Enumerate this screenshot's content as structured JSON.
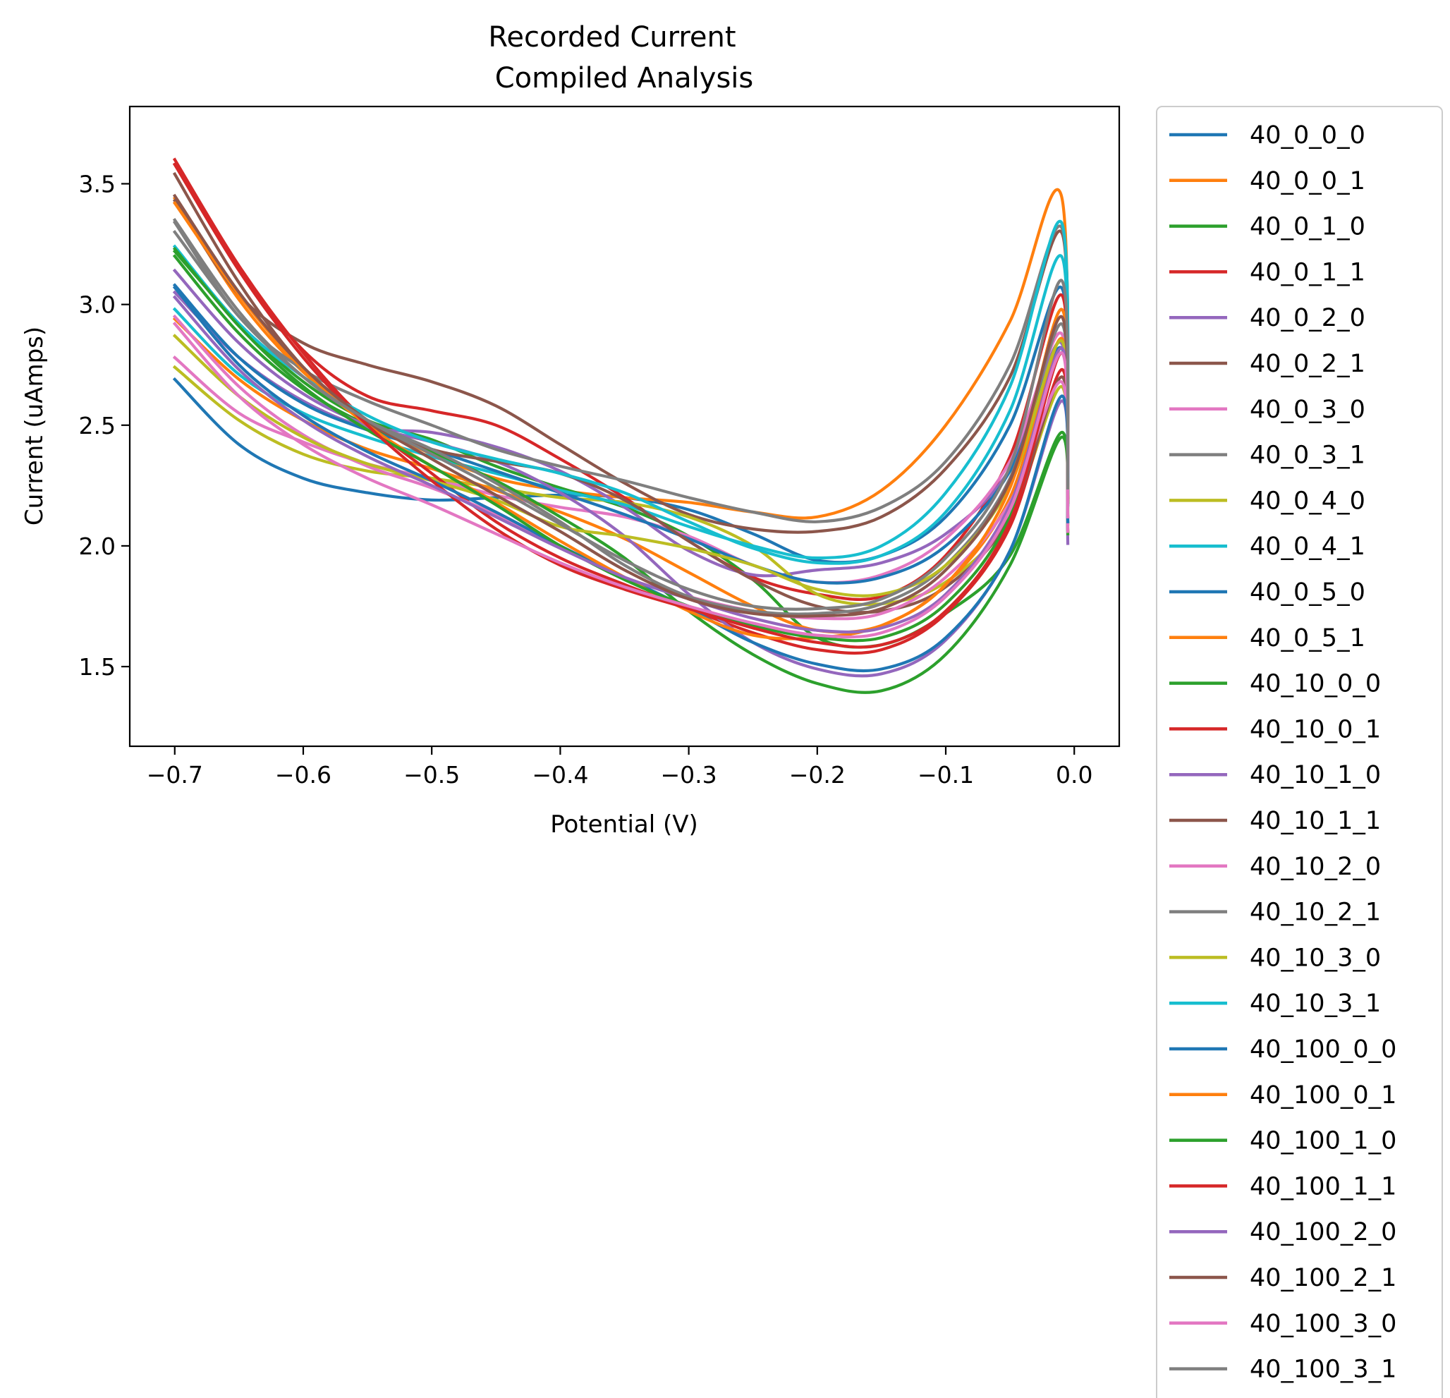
{
  "chart_data": {
    "type": "line",
    "title": "Recorded Current",
    "subtitle": "Compiled Analysis",
    "xlabel": "Potential (V)",
    "ylabel": "Current (uAmps)",
    "xlim": [
      -0.735,
      0.035
    ],
    "ylim": [
      1.17,
      3.82
    ],
    "xticks": [
      "−0.7",
      "−0.6",
      "−0.5",
      "−0.4",
      "−0.3",
      "−0.2",
      "−0.1",
      "0.0"
    ],
    "yticks": [
      "1.5",
      "2.0",
      "2.5",
      "3.0",
      "3.5"
    ],
    "grid": false,
    "legend_position": "outside-right",
    "x_samples": [
      -0.7,
      -0.65,
      -0.6,
      -0.55,
      -0.5,
      -0.45,
      -0.4,
      -0.35,
      -0.3,
      -0.25,
      -0.2,
      -0.15,
      -0.1,
      -0.05,
      -0.01,
      -0.005
    ],
    "series": [
      {
        "name": "40_0_0_0",
        "color": "#1f77b4",
        "values": [
          2.69,
          2.42,
          2.28,
          2.22,
          2.19,
          2.2,
          2.21,
          2.2,
          2.15,
          2.05,
          1.94,
          1.96,
          2.12,
          2.5,
          3.07,
          2.27
        ]
      },
      {
        "name": "40_0_0_1",
        "color": "#ff7f0e",
        "values": [
          3.44,
          3.02,
          2.72,
          2.52,
          2.38,
          2.28,
          2.23,
          2.2,
          2.18,
          2.14,
          2.12,
          2.23,
          2.5,
          2.93,
          3.45,
          2.06
        ]
      },
      {
        "name": "40_0_1_0",
        "color": "#2ca02c",
        "values": [
          3.22,
          2.92,
          2.68,
          2.52,
          2.44,
          2.33,
          2.24,
          2.16,
          2.04,
          1.86,
          1.62,
          1.59,
          1.72,
          1.96,
          2.47,
          2.06
        ]
      },
      {
        "name": "40_0_1_1",
        "color": "#d62728",
        "values": [
          3.58,
          3.15,
          2.81,
          2.62,
          2.56,
          2.5,
          2.36,
          2.2,
          2.02,
          1.87,
          1.8,
          1.79,
          1.96,
          2.37,
          3.04,
          2.26
        ]
      },
      {
        "name": "40_0_2_0",
        "color": "#9467bd",
        "values": [
          3.05,
          2.78,
          2.6,
          2.49,
          2.47,
          2.41,
          2.31,
          2.16,
          1.98,
          1.88,
          1.9,
          1.93,
          2.05,
          2.32,
          2.84,
          2.01
        ]
      },
      {
        "name": "40_0_2_1",
        "color": "#8c564b",
        "values": [
          3.43,
          3.04,
          2.84,
          2.75,
          2.68,
          2.58,
          2.42,
          2.26,
          2.13,
          2.07,
          2.06,
          2.12,
          2.32,
          2.7,
          3.3,
          2.36
        ]
      },
      {
        "name": "40_0_3_0",
        "color": "#e377c2",
        "values": [
          2.78,
          2.55,
          2.43,
          2.34,
          2.28,
          2.21,
          2.16,
          2.12,
          2.04,
          1.92,
          1.85,
          1.88,
          2.03,
          2.35,
          2.88,
          2.12
        ]
      },
      {
        "name": "40_0_3_1",
        "color": "#7f7f7f",
        "values": [
          3.34,
          2.95,
          2.73,
          2.6,
          2.5,
          2.4,
          2.33,
          2.27,
          2.2,
          2.14,
          2.1,
          2.16,
          2.35,
          2.75,
          3.32,
          2.4
        ]
      },
      {
        "name": "40_0_4_0",
        "color": "#bcbd22",
        "values": [
          2.74,
          2.52,
          2.38,
          2.31,
          2.28,
          2.24,
          2.2,
          2.18,
          2.12,
          2.0,
          1.8,
          1.76,
          1.85,
          2.12,
          2.66,
          2.09
        ]
      },
      {
        "name": "40_0_4_1",
        "color": "#17becf",
        "values": [
          2.98,
          2.71,
          2.55,
          2.45,
          2.37,
          2.3,
          2.23,
          2.17,
          2.08,
          2.0,
          1.95,
          2.0,
          2.22,
          2.66,
          3.34,
          2.3
        ]
      },
      {
        "name": "40_0_5_0",
        "color": "#1f77b4",
        "values": [
          3.08,
          2.78,
          2.59,
          2.48,
          2.4,
          2.31,
          2.22,
          2.13,
          2.03,
          1.92,
          1.85,
          1.87,
          2.0,
          2.31,
          2.82,
          2.1
        ]
      },
      {
        "name": "40_0_5_1",
        "color": "#ff7f0e",
        "values": [
          2.94,
          2.69,
          2.52,
          2.4,
          2.32,
          2.23,
          2.14,
          2.03,
          1.89,
          1.75,
          1.65,
          1.67,
          1.84,
          2.2,
          2.86,
          2.18
        ]
      },
      {
        "name": "40_10_0_0",
        "color": "#2ca02c",
        "values": [
          3.2,
          2.88,
          2.65,
          2.5,
          2.39,
          2.27,
          2.12,
          1.95,
          1.73,
          1.55,
          1.43,
          1.4,
          1.55,
          1.92,
          2.45,
          2.05
        ]
      },
      {
        "name": "40_10_0_1",
        "color": "#d62728",
        "values": [
          3.6,
          3.16,
          2.8,
          2.51,
          2.3,
          2.1,
          1.95,
          1.84,
          1.74,
          1.64,
          1.57,
          1.57,
          1.72,
          2.08,
          2.73,
          2.19
        ]
      },
      {
        "name": "40_10_1_0",
        "color": "#9467bd",
        "values": [
          3.14,
          2.84,
          2.63,
          2.5,
          2.43,
          2.35,
          2.22,
          2.04,
          1.8,
          1.6,
          1.49,
          1.47,
          1.61,
          1.98,
          2.6,
          2.12
        ]
      },
      {
        "name": "40_10_1_1",
        "color": "#8c564b",
        "values": [
          3.54,
          3.09,
          2.74,
          2.51,
          2.4,
          2.35,
          2.3,
          2.19,
          2.02,
          1.86,
          1.75,
          1.73,
          1.83,
          2.12,
          2.7,
          2.18
        ]
      },
      {
        "name": "40_10_2_0",
        "color": "#e377c2",
        "values": [
          2.95,
          2.66,
          2.46,
          2.33,
          2.24,
          2.13,
          2.0,
          1.87,
          1.79,
          1.73,
          1.7,
          1.72,
          1.87,
          2.18,
          2.68,
          2.06
        ]
      },
      {
        "name": "40_10_2_1",
        "color": "#7f7f7f",
        "values": [
          3.35,
          2.97,
          2.7,
          2.52,
          2.4,
          2.26,
          2.1,
          1.92,
          1.79,
          1.73,
          1.72,
          1.76,
          1.92,
          2.28,
          2.92,
          2.22
        ]
      },
      {
        "name": "40_10_3_0",
        "color": "#bcbd22",
        "values": [
          2.87,
          2.62,
          2.45,
          2.34,
          2.27,
          2.19,
          2.08,
          2.04,
          1.99,
          1.92,
          1.82,
          1.8,
          1.92,
          2.25,
          2.85,
          2.12
        ]
      },
      {
        "name": "40_10_3_1",
        "color": "#17becf",
        "values": [
          3.24,
          2.92,
          2.7,
          2.54,
          2.43,
          2.36,
          2.3,
          2.22,
          2.1,
          1.99,
          1.93,
          1.96,
          2.14,
          2.56,
          3.2,
          2.29
        ]
      },
      {
        "name": "40_100_0_0",
        "color": "#1f77b4",
        "values": [
          3.07,
          2.75,
          2.54,
          2.39,
          2.27,
          2.14,
          2.0,
          1.87,
          1.74,
          1.6,
          1.51,
          1.49,
          1.62,
          1.98,
          2.62,
          2.1
        ]
      },
      {
        "name": "40_100_0_1",
        "color": "#ff7f0e",
        "values": [
          3.42,
          3.04,
          2.73,
          2.5,
          2.33,
          2.18,
          2.02,
          1.87,
          1.73,
          1.63,
          1.62,
          1.67,
          1.84,
          2.24,
          2.98,
          2.24
        ]
      },
      {
        "name": "40_100_1_0",
        "color": "#2ca02c",
        "values": [
          3.23,
          2.91,
          2.66,
          2.48,
          2.33,
          2.17,
          2.0,
          1.86,
          1.75,
          1.67,
          1.62,
          1.62,
          1.76,
          2.12,
          2.8,
          2.18
        ]
      },
      {
        "name": "40_100_1_1",
        "color": "#d62728",
        "values": [
          3.58,
          3.14,
          2.78,
          2.5,
          2.27,
          2.07,
          1.92,
          1.82,
          1.74,
          1.66,
          1.6,
          1.59,
          1.73,
          2.1,
          2.8,
          2.2
        ]
      },
      {
        "name": "40_100_2_0",
        "color": "#9467bd",
        "values": [
          3.03,
          2.73,
          2.52,
          2.37,
          2.25,
          2.12,
          1.99,
          1.87,
          1.78,
          1.7,
          1.65,
          1.66,
          1.8,
          2.17,
          2.82,
          2.17
        ]
      },
      {
        "name": "40_100_2_1",
        "color": "#8c564b",
        "values": [
          3.45,
          3.05,
          2.74,
          2.52,
          2.36,
          2.21,
          2.06,
          1.9,
          1.78,
          1.72,
          1.71,
          1.74,
          1.9,
          2.27,
          2.95,
          2.2
        ]
      },
      {
        "name": "40_100_3_0",
        "color": "#e377c2",
        "values": [
          2.92,
          2.62,
          2.42,
          2.28,
          2.17,
          2.05,
          1.93,
          1.83,
          1.75,
          1.68,
          1.63,
          1.64,
          1.79,
          2.15,
          2.8,
          2.12
        ]
      },
      {
        "name": "40_100_3_1",
        "color": "#7f7f7f",
        "values": [
          3.3,
          2.95,
          2.7,
          2.52,
          2.38,
          2.24,
          2.09,
          1.94,
          1.82,
          1.75,
          1.74,
          1.78,
          1.95,
          2.33,
          3.1,
          2.24
        ]
      }
    ]
  }
}
